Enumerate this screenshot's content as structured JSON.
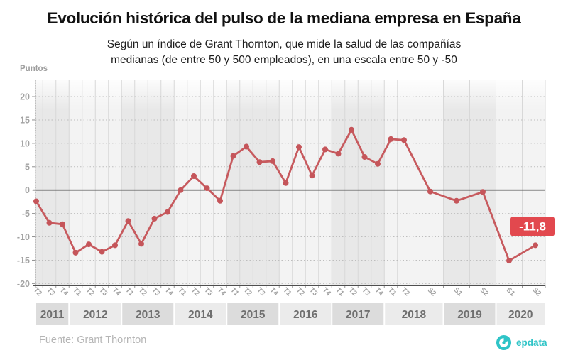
{
  "header": {
    "title": "Evolución histórica del pulso de la mediana empresa en España",
    "subtitle": "Según un índice de Grant Thornton, que mide la salud de las compañías\nmedianas (de entre 50 y 500 empleados), en una escala entre 50 y -50"
  },
  "chart_data": {
    "type": "line",
    "title": "Evolución histórica del pulso de la mediana empresa en España",
    "xlabel": "",
    "ylabel": "Puntos",
    "ylim": [
      -20.4,
      23.5
    ],
    "yticks": [
      20,
      15,
      10,
      5,
      0,
      -5,
      -10,
      -15,
      -20
    ],
    "grid": true,
    "legend": false,
    "points": [
      {
        "year": "2011",
        "period": "T2",
        "value": -2.4
      },
      {
        "year": "2011",
        "period": "T3",
        "value": -7.0
      },
      {
        "year": "2011",
        "period": "T4",
        "value": -7.3
      },
      {
        "year": "2012",
        "period": "T1",
        "value": -13.4
      },
      {
        "year": "2012",
        "period": "T2",
        "value": -11.6
      },
      {
        "year": "2012",
        "period": "T3",
        "value": -13.2
      },
      {
        "year": "2012",
        "period": "T4",
        "value": -11.8
      },
      {
        "year": "2013",
        "period": "T1",
        "value": -6.6
      },
      {
        "year": "2013",
        "period": "T2",
        "value": -11.5
      },
      {
        "year": "2013",
        "period": "T3",
        "value": -6.1
      },
      {
        "year": "2013",
        "period": "T4",
        "value": -4.7
      },
      {
        "year": "2014",
        "period": "T1",
        "value": 0.0
      },
      {
        "year": "2014",
        "period": "T2",
        "value": 3.0
      },
      {
        "year": "2014",
        "period": "T3",
        "value": 0.4
      },
      {
        "year": "2014",
        "period": "T4",
        "value": -2.3
      },
      {
        "year": "2015",
        "period": "T1",
        "value": 7.3
      },
      {
        "year": "2015",
        "period": "T2",
        "value": 9.3
      },
      {
        "year": "2015",
        "period": "T3",
        "value": 6.0
      },
      {
        "year": "2015",
        "period": "T4",
        "value": 6.2
      },
      {
        "year": "2016",
        "period": "T1",
        "value": 1.5
      },
      {
        "year": "2016",
        "period": "T2",
        "value": 9.2
      },
      {
        "year": "2016",
        "period": "T3",
        "value": 3.1
      },
      {
        "year": "2016",
        "period": "T4",
        "value": 8.7
      },
      {
        "year": "2017",
        "period": "T1",
        "value": 7.8
      },
      {
        "year": "2017",
        "period": "T2",
        "value": 12.9
      },
      {
        "year": "2017",
        "period": "T3",
        "value": 7.1
      },
      {
        "year": "2017",
        "period": "T4",
        "value": 5.6
      },
      {
        "year": "2018",
        "period": "T1",
        "value": 10.9
      },
      {
        "year": "2018",
        "period": "T2",
        "value": 10.7
      },
      {
        "year": "2018",
        "period": "S2",
        "value": -0.3
      },
      {
        "year": "2019",
        "period": "S1",
        "value": -2.3
      },
      {
        "year": "2019",
        "period": "S2",
        "value": -0.4
      },
      {
        "year": "2020",
        "period": "S1",
        "value": -15.1
      },
      {
        "year": "2020",
        "period": "S2",
        "value": -11.8
      }
    ],
    "annotation": {
      "text": "-11,8",
      "point_index": 33
    },
    "colors": {
      "line": "#c75a5e",
      "marker": "#c5555a",
      "annotation_bg": "#e2484e",
      "annotation_text": "#ffffff",
      "band_odd": "#e8e8e8",
      "band_even": "#f3f3f3",
      "year_box_odd": "#dcdcdc",
      "year_box_even": "#ebebeb"
    }
  },
  "footer": {
    "source": "Fuente: Grant Thornton",
    "brand": "epdata",
    "brand_color": "#2fc4c7"
  }
}
